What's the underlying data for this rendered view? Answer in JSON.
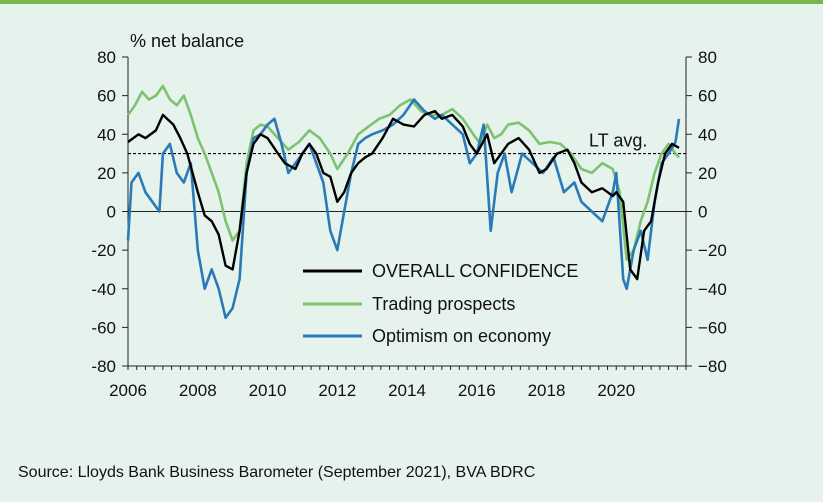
{
  "chart_data": {
    "type": "line",
    "ylabel": "% net balance",
    "ylim": [
      -80,
      80
    ],
    "yticks": [
      80,
      60,
      40,
      20,
      0,
      -20,
      -40,
      -60,
      -80
    ],
    "ytick_labels_left": [
      "80",
      "60",
      "40",
      "20",
      "0",
      "-20",
      "-40",
      "-60",
      "-80"
    ],
    "ytick_labels_right": [
      "80",
      "60",
      "40",
      "20",
      "0",
      "−20",
      "−40",
      "−60",
      "−80"
    ],
    "xlim": [
      2006,
      2022
    ],
    "xticks": [
      2006,
      2008,
      2010,
      2012,
      2014,
      2016,
      2018,
      2020
    ],
    "xtick_labels": [
      "2006",
      "2008",
      "2010",
      "2012",
      "2014",
      "2016",
      "2018",
      "2020"
    ],
    "reference_line": {
      "label": "LT avg.",
      "value": 30
    },
    "legend_position": "bottom-center",
    "series": [
      {
        "name": "OVERALL CONFIDENCE",
        "color": "#000000",
        "x": [
          2006.0,
          2006.3,
          2006.5,
          2006.8,
          2007.0,
          2007.3,
          2007.5,
          2007.7,
          2008.0,
          2008.2,
          2008.4,
          2008.6,
          2008.8,
          2009.0,
          2009.2,
          2009.4,
          2009.6,
          2009.8,
          2010.0,
          2010.3,
          2010.5,
          2010.8,
          2011.0,
          2011.2,
          2011.4,
          2011.6,
          2011.8,
          2012.0,
          2012.2,
          2012.4,
          2012.6,
          2012.8,
          2013.0,
          2013.3,
          2013.6,
          2013.9,
          2014.2,
          2014.5,
          2014.8,
          2015.0,
          2015.3,
          2015.6,
          2015.8,
          2016.0,
          2016.3,
          2016.5,
          2016.7,
          2016.9,
          2017.2,
          2017.5,
          2017.8,
          2018.0,
          2018.3,
          2018.6,
          2018.8,
          2019.0,
          2019.3,
          2019.6,
          2019.9,
          2020.0,
          2020.2,
          2020.4,
          2020.6,
          2020.8,
          2021.0,
          2021.2,
          2021.4,
          2021.6,
          2021.8
        ],
        "values": [
          36,
          40,
          38,
          42,
          50,
          45,
          38,
          30,
          10,
          -2,
          -5,
          -12,
          -28,
          -30,
          -10,
          20,
          35,
          40,
          38,
          30,
          25,
          22,
          30,
          35,
          30,
          20,
          18,
          5,
          10,
          20,
          25,
          28,
          30,
          38,
          48,
          45,
          44,
          50,
          52,
          48,
          50,
          44,
          35,
          30,
          40,
          25,
          30,
          35,
          38,
          32,
          20,
          22,
          30,
          32,
          25,
          15,
          10,
          12,
          8,
          10,
          5,
          -30,
          -35,
          -10,
          -5,
          15,
          30,
          35,
          33
        ]
      },
      {
        "name": "Trading prospects",
        "color": "#7ec270",
        "x": [
          2006.0,
          2006.2,
          2006.4,
          2006.6,
          2006.8,
          2007.0,
          2007.2,
          2007.4,
          2007.6,
          2007.8,
          2008.0,
          2008.2,
          2008.4,
          2008.6,
          2008.8,
          2009.0,
          2009.2,
          2009.4,
          2009.6,
          2009.8,
          2010.0,
          2010.3,
          2010.6,
          2010.9,
          2011.2,
          2011.5,
          2011.8,
          2012.0,
          2012.3,
          2012.6,
          2012.9,
          2013.2,
          2013.5,
          2013.8,
          2014.1,
          2014.4,
          2014.7,
          2015.0,
          2015.3,
          2015.6,
          2015.9,
          2016.1,
          2016.3,
          2016.5,
          2016.7,
          2016.9,
          2017.2,
          2017.5,
          2017.8,
          2018.1,
          2018.4,
          2018.7,
          2019.0,
          2019.3,
          2019.6,
          2019.9,
          2020.1,
          2020.3,
          2020.5,
          2020.7,
          2020.9,
          2021.1,
          2021.3,
          2021.5,
          2021.7,
          2021.8
        ],
        "values": [
          50,
          55,
          62,
          58,
          60,
          65,
          58,
          55,
          60,
          50,
          38,
          30,
          20,
          10,
          -5,
          -15,
          -10,
          25,
          42,
          45,
          44,
          38,
          32,
          36,
          42,
          38,
          30,
          22,
          30,
          40,
          44,
          48,
          50,
          55,
          58,
          52,
          50,
          50,
          53,
          48,
          40,
          35,
          45,
          38,
          40,
          45,
          46,
          42,
          35,
          36,
          35,
          30,
          22,
          20,
          25,
          22,
          10,
          -25,
          -20,
          -5,
          5,
          20,
          30,
          35,
          30,
          28
        ]
      },
      {
        "name": "Optimism on economy",
        "color": "#2a7ab8",
        "x": [
          2006.0,
          2006.1,
          2006.3,
          2006.5,
          2006.7,
          2006.9,
          2007.0,
          2007.2,
          2007.4,
          2007.6,
          2007.8,
          2008.0,
          2008.2,
          2008.4,
          2008.6,
          2008.8,
          2009.0,
          2009.2,
          2009.4,
          2009.6,
          2009.8,
          2010.0,
          2010.2,
          2010.4,
          2010.6,
          2010.8,
          2011.0,
          2011.2,
          2011.4,
          2011.6,
          2011.8,
          2012.0,
          2012.2,
          2012.4,
          2012.6,
          2012.8,
          2013.0,
          2013.3,
          2013.6,
          2013.9,
          2014.2,
          2014.5,
          2014.8,
          2015.0,
          2015.3,
          2015.6,
          2015.8,
          2016.0,
          2016.2,
          2016.4,
          2016.6,
          2016.8,
          2017.0,
          2017.3,
          2017.6,
          2017.9,
          2018.2,
          2018.5,
          2018.8,
          2019.0,
          2019.3,
          2019.6,
          2019.9,
          2020.0,
          2020.2,
          2020.3,
          2020.5,
          2020.7,
          2020.9,
          2021.1,
          2021.3,
          2021.5,
          2021.7,
          2021.8
        ],
        "values": [
          -15,
          15,
          20,
          10,
          5,
          0,
          30,
          35,
          20,
          15,
          25,
          -20,
          -40,
          -30,
          -40,
          -55,
          -50,
          -35,
          20,
          38,
          40,
          45,
          48,
          35,
          20,
          25,
          30,
          35,
          25,
          15,
          -10,
          -20,
          0,
          20,
          35,
          38,
          40,
          42,
          45,
          50,
          58,
          52,
          48,
          50,
          45,
          40,
          25,
          30,
          45,
          -10,
          20,
          30,
          10,
          30,
          25,
          20,
          28,
          10,
          15,
          5,
          0,
          -5,
          10,
          20,
          -35,
          -40,
          -20,
          -10,
          -25,
          5,
          25,
          30,
          36,
          48
        ]
      }
    ]
  },
  "source": "Source: Lloyds Bank Business Barometer (September 2021), BVA BDRC"
}
